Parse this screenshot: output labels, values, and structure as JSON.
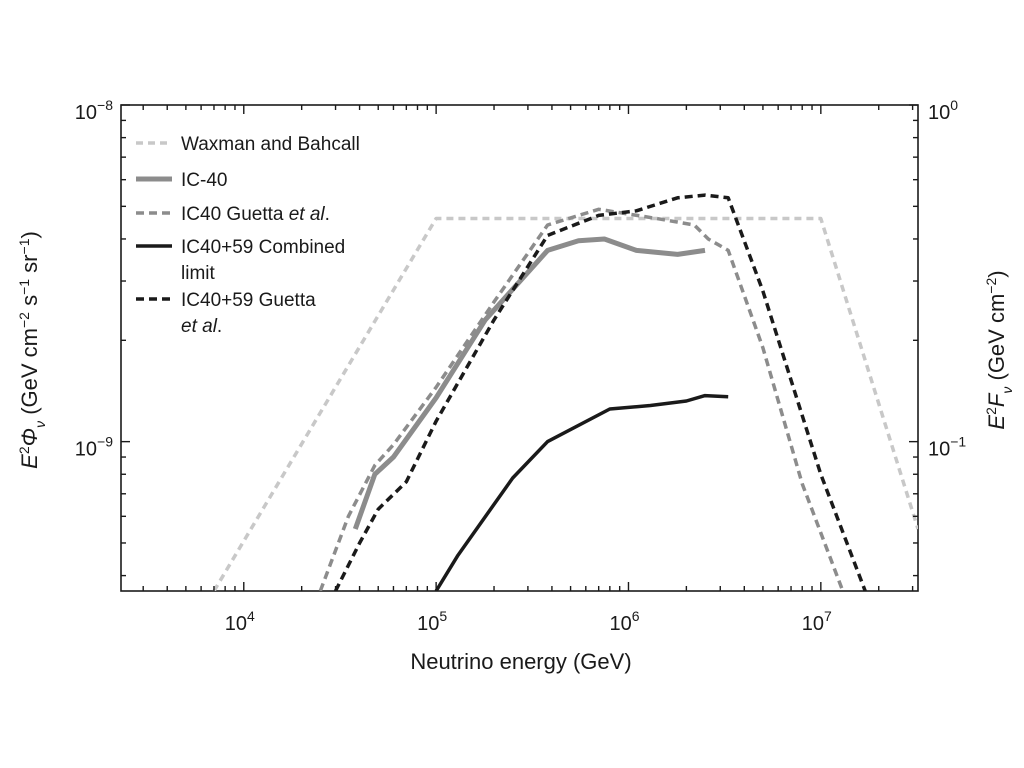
{
  "chart_data": {
    "type": "line",
    "title": "",
    "xlabel": "Neutrino energy (GeV)",
    "ylabel_left": {
      "pre": "E",
      "sup1": "2",
      "phi": "Φ",
      "sub": "ν",
      "mid": " (GeV cm",
      "sup2": "−2",
      "mid2": " s",
      "sup3": "−1",
      "mid3": " sr",
      "sup4": "−1",
      "post": ")"
    },
    "ylabel_right": {
      "pre": "E",
      "sup1": "2",
      "f": "F",
      "sub": "ν",
      "mid": " (GeV cm",
      "sup2": "−2",
      "post": ")"
    },
    "x_scale": "log",
    "y_scale": "log",
    "xlim": [
      2300,
      32000000
    ],
    "ylim_left": [
      3.6e-10,
      1e-08
    ],
    "ylim_right": [
      0.036,
      1.0
    ],
    "grid": false,
    "legend_position": "top-left",
    "x_ticks": [
      {
        "value": 10000,
        "base": "10",
        "exp": "4"
      },
      {
        "value": 100000,
        "base": "10",
        "exp": "5"
      },
      {
        "value": 1000000,
        "base": "10",
        "exp": "6"
      },
      {
        "value": 10000000,
        "base": "10",
        "exp": "7"
      }
    ],
    "y_ticks_left": [
      {
        "value": 1e-09,
        "base": "10",
        "exp": "−9"
      },
      {
        "value": 1e-08,
        "base": "10",
        "exp": "−8"
      }
    ],
    "y_ticks_right": [
      {
        "value": 0.1,
        "base": "10",
        "exp": "−1"
      },
      {
        "value": 1.0,
        "base": "10",
        "exp": "0"
      }
    ],
    "series": [
      {
        "name": "Waxman and Bahcall",
        "name_lines": [
          "Waxman and Bahcall"
        ],
        "color": "#c8c8c8",
        "dash": "7,5",
        "width": 3.5,
        "x": [
          7000,
          100000,
          10000000,
          32000000
        ],
        "y": [
          3.6e-10,
          4.6e-09,
          4.6e-09,
          5.5e-10
        ]
      },
      {
        "name": "IC-40",
        "name_lines": [
          "IC-40"
        ],
        "color": "#8c8c8c",
        "dash": "",
        "width": 5,
        "x": [
          38000,
          48000,
          60000,
          100000,
          180000,
          380000,
          550000,
          750000,
          1100000,
          1800000,
          2500000
        ],
        "y": [
          5.5e-10,
          8e-10,
          9e-10,
          1.35e-09,
          2.3e-09,
          3.7e-09,
          3.95e-09,
          4e-09,
          3.7e-09,
          3.6e-09,
          3.7e-09
        ]
      },
      {
        "name": "IC40 Guetta et al.",
        "name_lines": [
          "IC40 Guetta ",
          "et al",
          "."
        ],
        "color": "#8c8c8c",
        "dash": "8,5",
        "width": 3.5,
        "x": [
          25000,
          35000,
          48000,
          60000,
          100000,
          200000,
          380000,
          700000,
          1400000,
          2200000,
          2600000,
          3300000,
          5000000,
          8000000,
          13000000
        ],
        "y": [
          3.6e-10,
          6e-10,
          8.5e-10,
          9.8e-10,
          1.45e-09,
          2.6e-09,
          4.4e-09,
          4.9e-09,
          4.6e-09,
          4.4e-09,
          4e-09,
          3.7e-09,
          1.9e-09,
          7.5e-10,
          3.6e-10
        ]
      },
      {
        "name": "IC40+59 Combined limit",
        "name_lines": [
          "IC40+59 Combined",
          "limit"
        ],
        "color": "#1a1a1a",
        "dash": "",
        "width": 3.5,
        "x": [
          100000,
          130000,
          250000,
          380000,
          800000,
          1300000,
          2000000,
          2500000,
          3300000
        ],
        "y": [
          3.6e-10,
          4.6e-10,
          7.8e-10,
          1e-09,
          1.25e-09,
          1.28e-09,
          1.32e-09,
          1.37e-09,
          1.36e-09
        ]
      },
      {
        "name": "IC40+59 Guetta et al.",
        "name_lines": [
          "IC40+59 Guetta",
          "et al",
          "."
        ],
        "color": "#1a1a1a",
        "dash": "8,5",
        "width": 3.5,
        "x": [
          30000,
          40000,
          50000,
          70000,
          100000,
          200000,
          380000,
          700000,
          1100000,
          1800000,
          2500000,
          3300000,
          5000000,
          10000000,
          17000000
        ],
        "y": [
          3.6e-10,
          5e-10,
          6.3e-10,
          7.6e-10,
          1.15e-09,
          2.3e-09,
          4.1e-09,
          4.7e-09,
          4.85e-09,
          5.3e-09,
          5.4e-09,
          5.3e-09,
          2.8e-09,
          8e-10,
          3.6e-10
        ]
      }
    ]
  }
}
